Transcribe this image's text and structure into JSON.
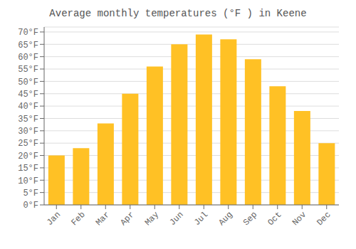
{
  "chart_data": {
    "type": "bar",
    "title": "Average monthly temperatures (°F ) in Keene",
    "categories": [
      "Jan",
      "Feb",
      "Mar",
      "Apr",
      "May",
      "Jun",
      "Jul",
      "Aug",
      "Sep",
      "Oct",
      "Nov",
      "Dec"
    ],
    "values": [
      20,
      23,
      33,
      45,
      56,
      65,
      69,
      67,
      59,
      48,
      38,
      25
    ],
    "color": "#FFC125",
    "ylim": [
      0,
      72
    ],
    "yticks": [
      {
        "value": 0,
        "label": "0°F"
      },
      {
        "value": 5,
        "label": "5°F"
      },
      {
        "value": 10,
        "label": "10°F"
      },
      {
        "value": 15,
        "label": "15°F"
      },
      {
        "value": 20,
        "label": "20°F"
      },
      {
        "value": 25,
        "label": "25°F"
      },
      {
        "value": 30,
        "label": "30°F"
      },
      {
        "value": 35,
        "label": "35°F"
      },
      {
        "value": 40,
        "label": "40°F"
      },
      {
        "value": 45,
        "label": "45°F"
      },
      {
        "value": 50,
        "label": "50°F"
      },
      {
        "value": 55,
        "label": "55°F"
      },
      {
        "value": 60,
        "label": "60°F"
      },
      {
        "value": 65,
        "label": "65°F"
      },
      {
        "value": 70,
        "label": "70°F"
      }
    ],
    "grid": true
  }
}
